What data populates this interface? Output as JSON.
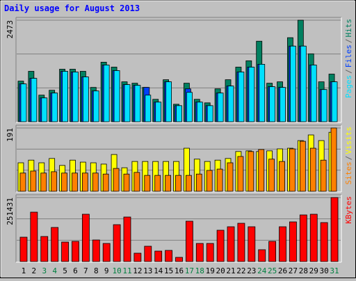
{
  "chart_data": [
    {
      "type": "bar",
      "title": "Daily usage for August 2013",
      "legend_separator": "/",
      "ylim": [
        0,
        2473
      ],
      "yticks": [
        2473
      ],
      "series": [
        {
          "name": "Hits",
          "color": "#008060",
          "values": [
            989,
            1228,
            648,
            767,
            1279,
            1279,
            1228,
            836,
            1450,
            1330,
            972,
            938,
            836,
            546,
            1023,
            426,
            938,
            546,
            460,
            801,
            1023,
            1330,
            1484,
            1961,
            938,
            972,
            2047,
            2473,
            1654,
            972,
            1160
          ]
        },
        {
          "name": "Files",
          "color": "#0040ff",
          "values": [
            921,
            1057,
            580,
            699,
            1228,
            1211,
            1092,
            750,
            1381,
            1245,
            904,
            887,
            836,
            478,
            972,
            392,
            801,
            478,
            392,
            699,
            870,
            1211,
            1330,
            1399,
            853,
            836,
            1842,
            1842,
            1381,
            784,
            972
          ]
        },
        {
          "name": "Pages",
          "color": "#00e0ff",
          "values": [
            921,
            1057,
            580,
            699,
            1228,
            1211,
            1092,
            750,
            1381,
            1245,
            904,
            887,
            648,
            478,
            972,
            392,
            716,
            478,
            392,
            699,
            870,
            1211,
            1330,
            1399,
            853,
            836,
            1842,
            1842,
            1381,
            784,
            972
          ]
        }
      ]
    },
    {
      "type": "bar",
      "legend_separator": "/",
      "ylim": [
        0,
        191
      ],
      "yticks": [
        191
      ],
      "series": [
        {
          "name": "Visits",
          "color": "#ffff00",
          "values": [
            86,
            94,
            86,
            99,
            78,
            94,
            88,
            86,
            82,
            111,
            71,
            90,
            90,
            90,
            90,
            90,
            130,
            97,
            90,
            94,
            99,
            120,
            122,
            120,
            122,
            128,
            130,
            153,
            170,
            153,
            178
          ]
        },
        {
          "name": "Sites",
          "color": "#ff8000",
          "values": [
            55,
            61,
            55,
            59,
            55,
            55,
            55,
            55,
            52,
            69,
            52,
            57,
            48,
            48,
            48,
            48,
            48,
            52,
            63,
            67,
            86,
            105,
            120,
            126,
            97,
            90,
            128,
            151,
            130,
            94,
            191
          ]
        }
      ]
    },
    {
      "type": "bar",
      "ylim": [
        0,
        251431
      ],
      "yticks": [
        251431
      ],
      "categories": [
        "1",
        "2",
        "3",
        "4",
        "5",
        "6",
        "7",
        "8",
        "9",
        "10",
        "11",
        "12",
        "13",
        "14",
        "15",
        "16",
        "17",
        "18",
        "19",
        "20",
        "21",
        "22",
        "23",
        "24",
        "25",
        "26",
        "27",
        "28",
        "29",
        "30",
        "31"
      ],
      "category_colors": [
        "#000000",
        "#000000",
        "#008040",
        "#008040",
        "#000000",
        "#000000",
        "#000000",
        "#000000",
        "#000000",
        "#008040",
        "#008040",
        "#000000",
        "#000000",
        "#000000",
        "#000000",
        "#000000",
        "#008040",
        "#008040",
        "#000000",
        "#000000",
        "#000000",
        "#000000",
        "#000000",
        "#008040",
        "#008040",
        "#000000",
        "#000000",
        "#000000",
        "#000000",
        "#000000",
        "#008040"
      ],
      "series": [
        {
          "name": "KBytes",
          "color": "#ff0000",
          "values": [
            95652,
            194040,
            98385,
            133913,
            76522,
            79255,
            185841,
            84721,
            71057,
            144846,
            174908,
            32795,
            60125,
            40994,
            43727,
            16398,
            158511,
            71057,
            71057,
            122982,
            136646,
            150311,
            136646,
            46460,
            79255,
            136646,
            155778,
            183108,
            185841,
            153044,
            251431
          ]
        }
      ]
    }
  ]
}
